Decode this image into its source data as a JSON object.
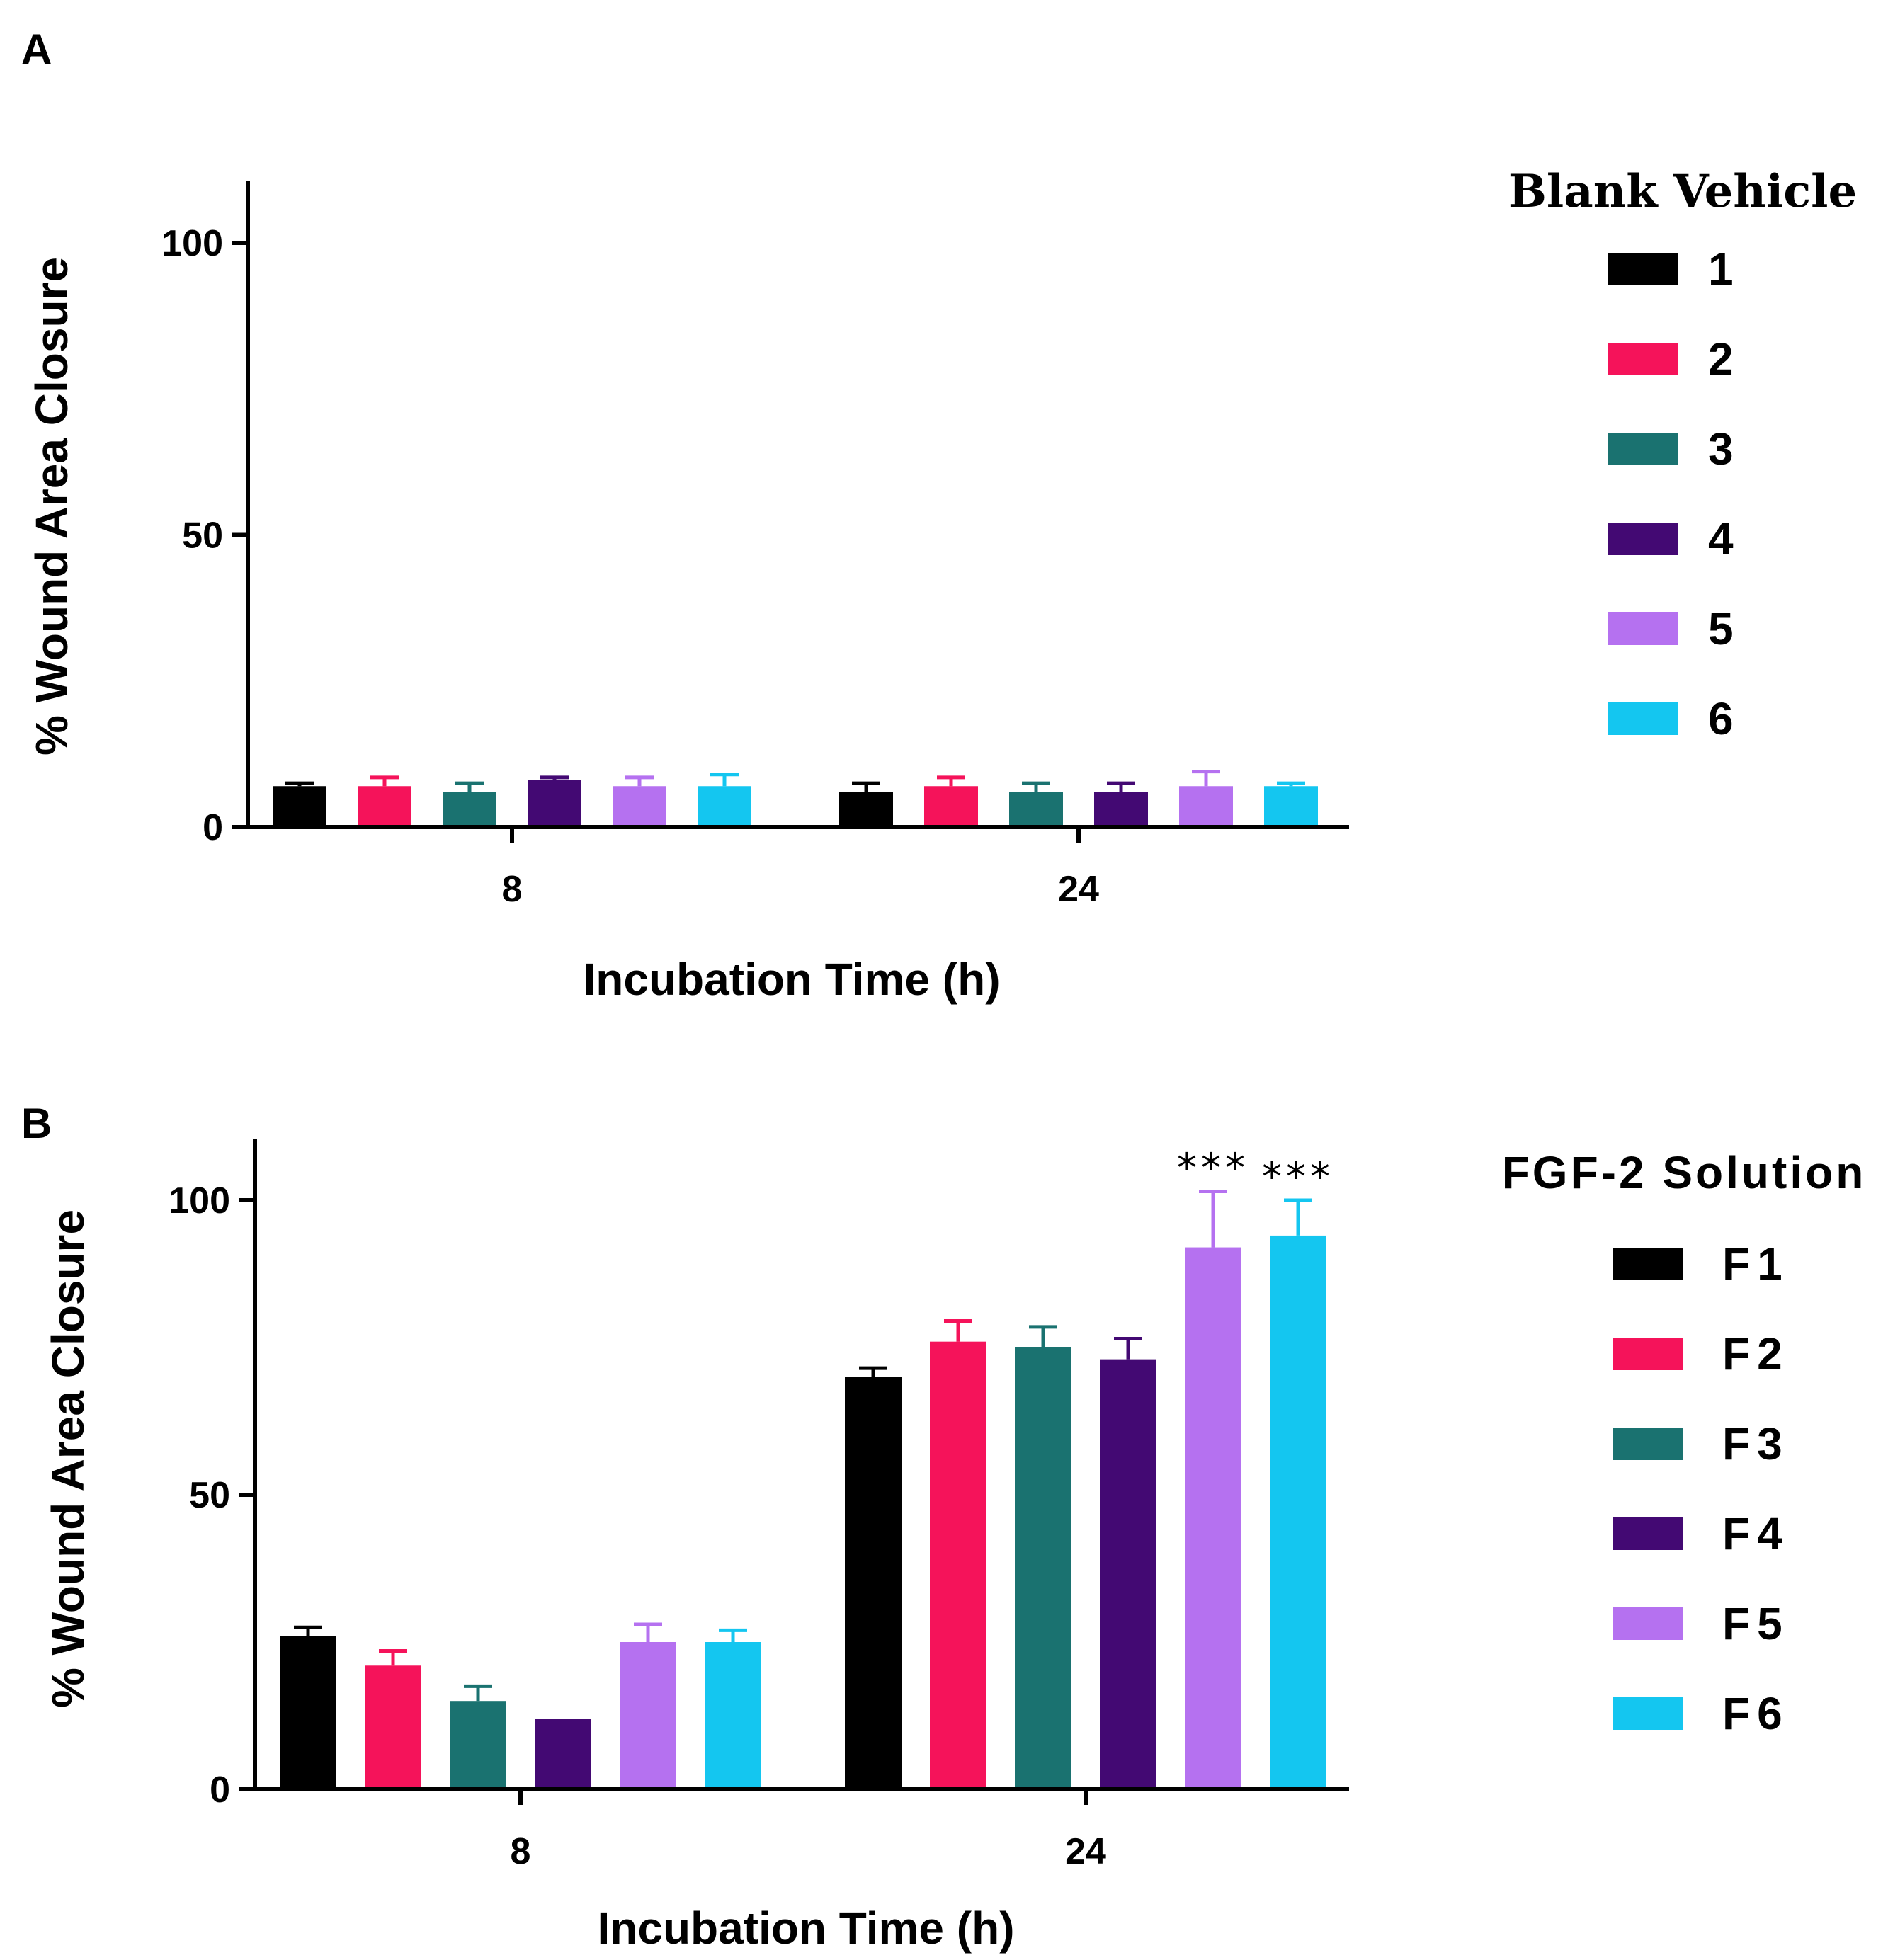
{
  "chart_data": [
    {
      "panel": "A",
      "type": "bar",
      "categories": [
        "8",
        "24"
      ],
      "xlabel": "Incubation Time (h)",
      "ylabel": "% Wound Area Closure",
      "ylim": [
        0,
        110
      ],
      "yticks": [
        0,
        50,
        100
      ],
      "legend_title": "Blank Vehicle",
      "legend_position": "right",
      "series": [
        {
          "name": "1",
          "color": "#000000",
          "values": [
            7,
            6
          ],
          "errors": [
            0.5,
            1.5
          ]
        },
        {
          "name": "2",
          "color": "#f5135a",
          "values": [
            7,
            7
          ],
          "errors": [
            1.5,
            1.5
          ]
        },
        {
          "name": "3",
          "color": "#1a7270",
          "values": [
            6,
            6
          ],
          "errors": [
            1.5,
            1.5
          ]
        },
        {
          "name": "4",
          "color": "#430973",
          "values": [
            8,
            6
          ],
          "errors": [
            0.5,
            1.5
          ]
        },
        {
          "name": "5",
          "color": "#b571f0",
          "values": [
            7,
            7
          ],
          "errors": [
            1.5,
            2.5
          ]
        },
        {
          "name": "6",
          "color": "#14c6f0",
          "values": [
            7,
            7
          ],
          "errors": [
            2.0,
            0.5
          ]
        }
      ],
      "annotations": []
    },
    {
      "panel": "B",
      "type": "bar",
      "categories": [
        "8",
        "24"
      ],
      "xlabel": "Incubation Time (h)",
      "ylabel": "% Wound Area Closure",
      "ylim": [
        0,
        110
      ],
      "yticks": [
        0,
        50,
        100
      ],
      "legend_title": "FGF-2 Solution",
      "legend_position": "right",
      "series": [
        {
          "name": "F1",
          "color": "#000000",
          "values": [
            26,
            70
          ],
          "errors": [
            1.5,
            1.5
          ]
        },
        {
          "name": "F2",
          "color": "#f5135a",
          "values": [
            21,
            76
          ],
          "errors": [
            2.5,
            3.5
          ]
        },
        {
          "name": "F3",
          "color": "#1a7270",
          "values": [
            15,
            75
          ],
          "errors": [
            2.5,
            3.5
          ]
        },
        {
          "name": "F4",
          "color": "#430973",
          "values": [
            12,
            73
          ],
          "errors": [
            0,
            3.5
          ]
        },
        {
          "name": "F5",
          "color": "#b571f0",
          "values": [
            25,
            92
          ],
          "errors": [
            3.0,
            9.5
          ]
        },
        {
          "name": "F6",
          "color": "#14c6f0",
          "values": [
            25,
            94
          ],
          "errors": [
            2.0,
            6.0
          ]
        }
      ],
      "annotations": [
        {
          "category": "24",
          "series": "F5",
          "text": "***"
        },
        {
          "category": "24",
          "series": "F6",
          "text": "***"
        }
      ]
    }
  ]
}
